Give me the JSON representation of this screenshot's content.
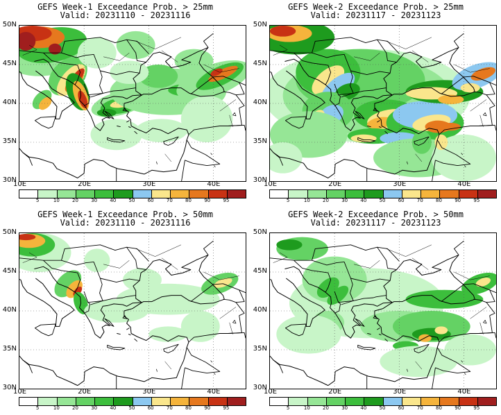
{
  "panels": [
    {
      "line1": "GEFS Week-1 Exceedance Prob. > 25mm",
      "line2": "Valid: 20231110 - 20231116",
      "variant": "w1_25"
    },
    {
      "line1": "GEFS Week-2 Exceedance Prob. > 25mm",
      "line2": "Valid: 20231117 - 20231123",
      "variant": "w2_25"
    },
    {
      "line1": "GEFS Week-1 Exceedance Prob. > 50mm",
      "line2": "Valid: 20231110 - 20231116",
      "variant": "w1_50"
    },
    {
      "line1": "GEFS Week-2 Exceedance Prob. > 50mm",
      "line2": "Valid: 20231117 - 20231123",
      "variant": "w2_50"
    }
  ],
  "lat_labels": [
    "50N",
    "45N",
    "40N",
    "35N",
    "30N"
  ],
  "lon_labels": [
    "10E",
    "20E",
    "30E",
    "40E"
  ],
  "colorbar": {
    "ticks": [
      "5",
      "10",
      "20",
      "30",
      "40",
      "50",
      "60",
      "70",
      "80",
      "90",
      "95"
    ],
    "colors": [
      "#ffffff",
      "#c8f5c8",
      "#96e696",
      "#64d264",
      "#3cbe3c",
      "#1e9b1e",
      "#8cc8f0",
      "#fae68c",
      "#f5b43c",
      "#e6781e",
      "#c83214",
      "#a01e1e"
    ]
  }
}
